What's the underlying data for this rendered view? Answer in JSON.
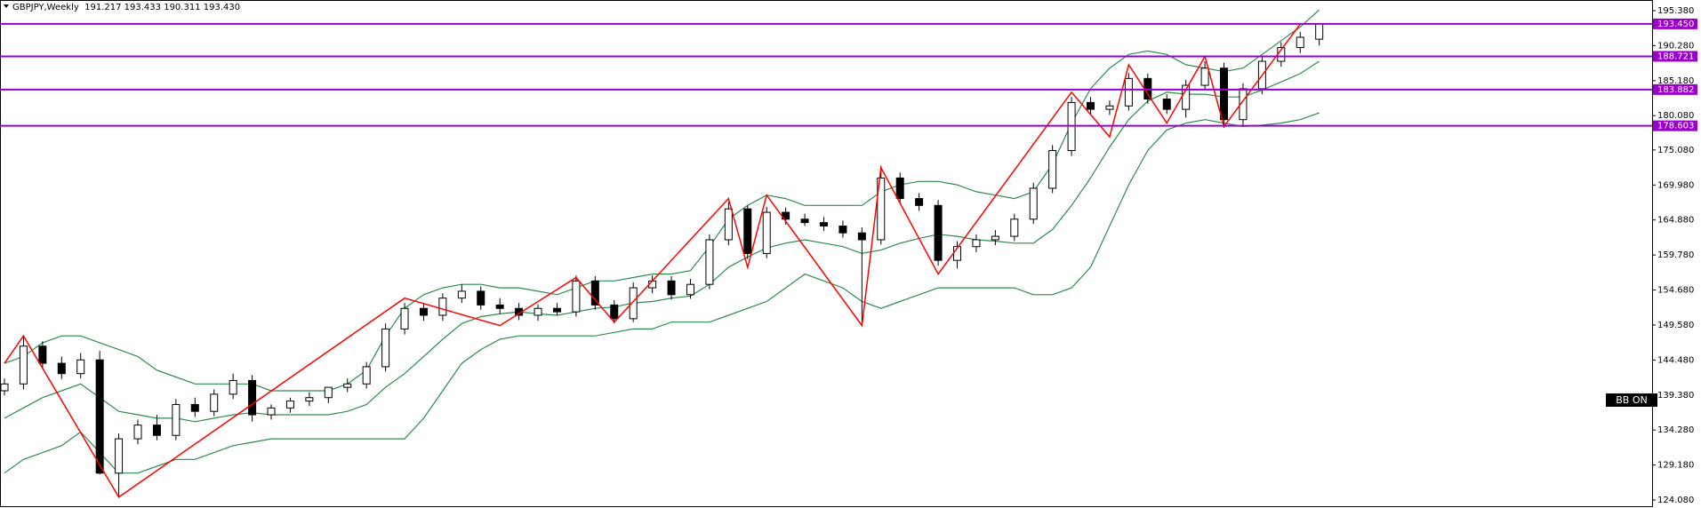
{
  "chart_data": {
    "type": "candlestick",
    "title": "GBPJPY,Weekly  191.217 193.433 190.311 193.430",
    "up_color": "#ffffff",
    "down_color": "#000000",
    "open": [
      140.0,
      141.0,
      146.5,
      144.0,
      142.5,
      144.5,
      128.0,
      133.0,
      135.0,
      133.5,
      138.0,
      137.0,
      139.5,
      141.5,
      136.5,
      137.5,
      138.5,
      139.0,
      140.5,
      141.0,
      143.5,
      149.0,
      152.0,
      151.0,
      153.5,
      154.5,
      152.5,
      152.0,
      151.0,
      152.0,
      151.5,
      156.0,
      152.5,
      150.5,
      155.0,
      156.0,
      154.0,
      155.5,
      162.0,
      166.5,
      160.0,
      166.0,
      165.0,
      164.5,
      164.0,
      163.0,
      162.0,
      171.0,
      168.0,
      167.0,
      159.0,
      161.0,
      162.0,
      162.5,
      165.0,
      169.5,
      175.0,
      182.0,
      181.0,
      181.5,
      185.5,
      182.5,
      181.0,
      184.5,
      187.0,
      179.5,
      184.0,
      188.0,
      190.0,
      191.217
    ],
    "high": [
      141.8,
      148.0,
      147.2,
      145.0,
      145.5,
      145.8,
      133.8,
      135.8,
      136.5,
      138.8,
      139.0,
      140.2,
      142.5,
      142.3,
      138.0,
      139.0,
      139.8,
      140.5,
      141.8,
      144.2,
      149.8,
      152.8,
      152.8,
      154.2,
      155.5,
      155.2,
      153.5,
      152.8,
      152.6,
      152.8,
      156.8,
      156.7,
      153.2,
      155.8,
      156.8,
      156.7,
      156.3,
      162.8,
      167.5,
      167.0,
      166.8,
      166.7,
      165.8,
      165.3,
      164.8,
      163.8,
      172.8,
      171.8,
      168.8,
      167.8,
      161.8,
      162.8,
      163.4,
      165.8,
      170.3,
      175.8,
      182.8,
      182.8,
      182.3,
      186.3,
      186.2,
      183.2,
      185.3,
      188.0,
      187.8,
      184.8,
      188.8,
      190.8,
      192.3,
      193.433
    ],
    "low": [
      139.3,
      140.2,
      143.3,
      141.7,
      141.8,
      127.8,
      124.5,
      132.2,
      132.8,
      132.8,
      136.2,
      136.3,
      138.8,
      135.5,
      135.8,
      136.8,
      137.8,
      138.2,
      139.8,
      140.3,
      142.8,
      148.2,
      150.2,
      150.2,
      152.8,
      151.8,
      151.2,
      150.3,
      150.2,
      151.0,
      150.8,
      151.8,
      149.8,
      150.0,
      154.2,
      153.3,
      153.4,
      154.8,
      161.2,
      159.2,
      159.3,
      164.2,
      164.0,
      163.3,
      162.3,
      149.5,
      161.3,
      167.2,
      166.2,
      158.2,
      157.8,
      160.2,
      161.2,
      161.8,
      164.3,
      168.8,
      174.2,
      180.2,
      180.2,
      180.8,
      181.8,
      180.3,
      179.8,
      183.8,
      178.3,
      178.6,
      183.2,
      187.2,
      189.2,
      190.311
    ],
    "close": [
      141.0,
      146.5,
      144.0,
      142.5,
      144.5,
      128.0,
      133.0,
      135.0,
      133.5,
      138.0,
      137.0,
      139.5,
      141.5,
      136.5,
      137.5,
      138.5,
      139.0,
      140.5,
      141.0,
      143.5,
      149.0,
      152.0,
      151.0,
      153.5,
      154.5,
      152.5,
      152.0,
      151.0,
      152.0,
      151.5,
      156.0,
      152.5,
      150.5,
      155.0,
      156.0,
      154.0,
      155.5,
      162.0,
      166.5,
      160.0,
      166.0,
      165.0,
      164.5,
      164.0,
      163.0,
      162.0,
      171.0,
      168.0,
      167.0,
      159.0,
      161.0,
      162.0,
      162.5,
      165.0,
      169.5,
      175.0,
      182.0,
      181.0,
      181.5,
      185.5,
      182.5,
      181.0,
      184.5,
      187.0,
      179.5,
      184.0,
      188.0,
      190.0,
      191.5,
      193.43
    ],
    "bands": {
      "color": "#2e8b4f",
      "upper": [
        144,
        145,
        147,
        148,
        148,
        147,
        146,
        145,
        143,
        142,
        141,
        141,
        141,
        141,
        140,
        140,
        140,
        140,
        141,
        143,
        148,
        152,
        154,
        155,
        155.5,
        155.5,
        155,
        155,
        154.5,
        154,
        155,
        156,
        156,
        156.5,
        157,
        157,
        157.5,
        161,
        165,
        167,
        168.5,
        168,
        167,
        167,
        167,
        167,
        169,
        170,
        170.5,
        170.5,
        170,
        169,
        168.5,
        168,
        169,
        173,
        179,
        184,
        187,
        189,
        189.5,
        189,
        187.5,
        187,
        186.5,
        187,
        189,
        191,
        193,
        195.5
      ],
      "middle": [
        136,
        137.5,
        139,
        140,
        141,
        139,
        137,
        136.5,
        136,
        136,
        135.5,
        136,
        136.5,
        136.8,
        136.5,
        136.5,
        136.5,
        136.5,
        137,
        138,
        140.5,
        142.5,
        145,
        147.5,
        149.8,
        150.8,
        151.2,
        151.5,
        151.2,
        151,
        151.5,
        152,
        152.2,
        152.8,
        153,
        153.5,
        153.8,
        155.5,
        158,
        159.5,
        160.8,
        161.5,
        162,
        161.5,
        161,
        160,
        160.5,
        161.5,
        162.2,
        162.8,
        162.5,
        162,
        161.8,
        161.5,
        161.5,
        163.5,
        167,
        171,
        175.5,
        179.5,
        182.2,
        183.5,
        183.2,
        183.2,
        182.8,
        182.8,
        183.8,
        185,
        186.2,
        188
      ],
      "lower": [
        128,
        130,
        131,
        132,
        134,
        131,
        128,
        128,
        129,
        130,
        130,
        131,
        132,
        132.5,
        133,
        133,
        133,
        133,
        133,
        133,
        133,
        133,
        136,
        140,
        144,
        146,
        147.5,
        148,
        148,
        148,
        148,
        148,
        148.5,
        149,
        149,
        150,
        150,
        150,
        151,
        152,
        153,
        155,
        157,
        156,
        155,
        153,
        152,
        153,
        154,
        155,
        155,
        155,
        155,
        155,
        154,
        154,
        155,
        158,
        164,
        170,
        175,
        178,
        179,
        179.5,
        179,
        178.5,
        178.7,
        179,
        179.5,
        180.5
      ]
    },
    "zigzag": {
      "color": "#ff0000",
      "x": [
        0,
        1,
        6,
        21,
        26,
        30,
        32,
        38,
        39,
        40,
        45,
        46,
        49,
        56,
        58,
        59,
        61,
        63,
        64,
        68
      ],
      "values": [
        144,
        148,
        124.5,
        153.5,
        149.5,
        156.5,
        150,
        168,
        158,
        168.5,
        149.5,
        172.5,
        157,
        183.5,
        177,
        187.5,
        179,
        188.7,
        178.5,
        193.4
      ]
    },
    "hline_color": "#9900cc",
    "hlines": [
      {
        "value": 193.45,
        "label": "193.450"
      },
      {
        "value": 188.721,
        "label": "188.721"
      },
      {
        "value": 183.882,
        "label": "183.882"
      },
      {
        "value": 178.603,
        "label": "178.603"
      }
    ],
    "ylim": [
      122.92,
      196.93
    ],
    "yticks": [
      {
        "value": 195.38,
        "label": "195.380"
      },
      {
        "value": 190.28,
        "label": "190.280"
      },
      {
        "value": 185.18,
        "label": "185.180"
      },
      {
        "value": 180.08,
        "label": "180.080"
      },
      {
        "value": 175.08,
        "label": "175.080"
      },
      {
        "value": 169.98,
        "label": "169.980"
      },
      {
        "value": 164.88,
        "label": "164.880"
      },
      {
        "value": 159.78,
        "label": "159.780"
      },
      {
        "value": 154.68,
        "label": "154.680"
      },
      {
        "value": 149.58,
        "label": "149.580"
      },
      {
        "value": 144.48,
        "label": "144.480"
      },
      {
        "value": 139.38,
        "label": "139.380"
      },
      {
        "value": 134.28,
        "label": "134.280"
      },
      {
        "value": 129.18,
        "label": "129.180"
      },
      {
        "value": 124.08,
        "label": "124.080"
      }
    ],
    "annotations": [
      "BB ON"
    ]
  }
}
